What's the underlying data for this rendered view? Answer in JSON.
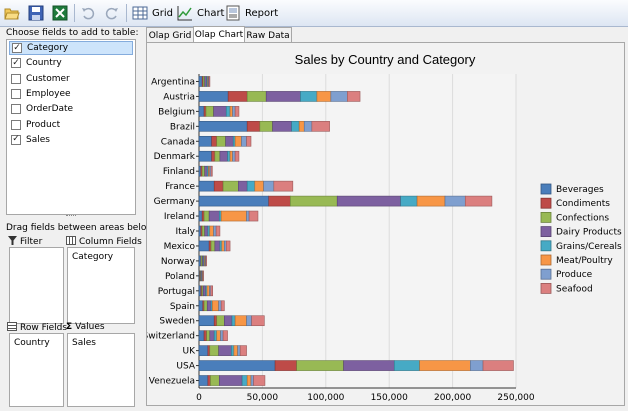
{
  "toolbar": {
    "grid_label": "Grid",
    "chart_label": "Chart",
    "report_label": "Report"
  },
  "left": {
    "choose_label": "Choose fields to add to table:",
    "fields": [
      {
        "label": "Category",
        "checked": true,
        "selected": true
      },
      {
        "label": "Country",
        "checked": true
      },
      {
        "label": "Customer",
        "checked": false
      },
      {
        "label": "Employee",
        "checked": false
      },
      {
        "label": "OrderDate",
        "checked": false
      },
      {
        "label": "Product",
        "checked": false
      },
      {
        "label": "Sales",
        "checked": true
      }
    ],
    "drag_label": "Drag fields between areas below:",
    "filter_label": "Filter",
    "column_fields_label": "Column Fields",
    "row_fields_label": "Row Fields",
    "values_label": "Values",
    "column_fields": [
      "Category"
    ],
    "row_fields": [
      "Country"
    ],
    "values": [
      "Sales"
    ]
  },
  "tabs": [
    "Olap Grid",
    "Olap Chart",
    "Raw Data"
  ],
  "active_tab": "Olap Chart",
  "chart_data": {
    "type": "bar",
    "orientation": "horizontal",
    "stacked": true,
    "title": "Sales by Country and Category",
    "xlim": [
      0,
      250000
    ],
    "xticks": [
      "0",
      "50,000",
      "100,000",
      "150,000",
      "200,000",
      "250,000"
    ],
    "grid": true,
    "legend_position": "right",
    "categories": [
      "Argentina",
      "Austria",
      "Belgium",
      "Brazil",
      "Canada",
      "Denmark",
      "Finland",
      "France",
      "Germany",
      "Ireland",
      "Italy",
      "Mexico",
      "Norway",
      "Poland",
      "Portugal",
      "Spain",
      "Sweden",
      "Switzerland",
      "UK",
      "USA",
      "Venezuela"
    ],
    "colors": [
      "#4a7ebb",
      "#be4b48",
      "#98b954",
      "#7d60a0",
      "#46aac5",
      "#f79646",
      "#7f9fcf",
      "#db7f7f"
    ],
    "series": [
      {
        "name": "Beverages",
        "values": [
          2500,
          23000,
          4000,
          38000,
          10000,
          10000,
          1500,
          12000,
          55000,
          2500,
          1500,
          8000,
          1500,
          500,
          1500,
          3000,
          12000,
          4000,
          7000,
          60000,
          7000
        ]
      },
      {
        "name": "Condiments",
        "values": [
          800,
          15000,
          1500,
          10000,
          4000,
          2500,
          1000,
          7000,
          17000,
          1500,
          1000,
          1500,
          300,
          300,
          800,
          1000,
          2000,
          2000,
          1500,
          17000,
          2000
        ]
      },
      {
        "name": "Confections",
        "values": [
          1200,
          15000,
          6000,
          10000,
          7000,
          4000,
          2000,
          12000,
          37000,
          4000,
          2000,
          3000,
          1000,
          600,
          1000,
          2500,
          6000,
          2500,
          7000,
          37000,
          7000
        ]
      },
      {
        "name": "Dairy Products",
        "values": [
          1500,
          27000,
          10000,
          15000,
          6000,
          6000,
          2000,
          7000,
          50000,
          8000,
          2500,
          4000,
          1000,
          800,
          2000,
          3000,
          6000,
          3500,
          10000,
          40000,
          18000
        ]
      },
      {
        "name": "Grains/Cereals",
        "values": [
          800,
          13000,
          3000,
          6000,
          1500,
          2000,
          1000,
          6000,
          13000,
          1500,
          1500,
          1500,
          600,
          300,
          1000,
          1000,
          2500,
          2000,
          2000,
          20000,
          4000
        ]
      },
      {
        "name": "Meat/Poultry",
        "values": [
          500,
          11000,
          2000,
          4000,
          5000,
          2000,
          1000,
          7000,
          22000,
          20000,
          3000,
          2000,
          600,
          500,
          2000,
          5000,
          9000,
          3000,
          3000,
          40000,
          3000
        ]
      },
      {
        "name": "Produce",
        "values": [
          500,
          13000,
          2000,
          6000,
          4000,
          2000,
          1000,
          8000,
          16000,
          2000,
          2000,
          1500,
          400,
          300,
          1000,
          2000,
          4000,
          2000,
          2000,
          10000,
          2000
        ]
      },
      {
        "name": "Seafood",
        "values": [
          800,
          10000,
          3000,
          14000,
          3500,
          3000,
          1000,
          15000,
          21000,
          7000,
          3000,
          3000,
          600,
          300,
          1500,
          2500,
          10000,
          3500,
          5000,
          24000,
          9000
        ]
      }
    ]
  }
}
